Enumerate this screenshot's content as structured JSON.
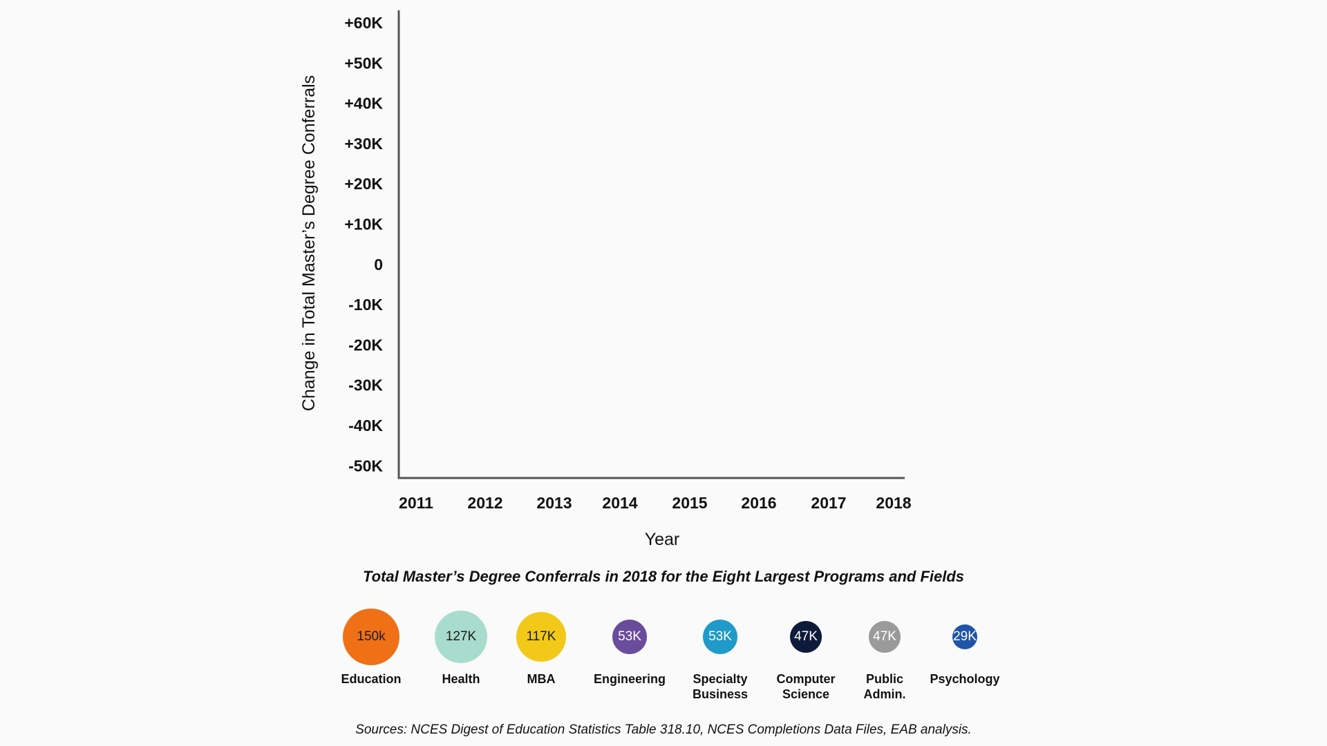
{
  "chart_data": {
    "type": "line",
    "title": "",
    "xlabel": "Year",
    "ylabel": "Change in Total Master’s Degree Conferrals",
    "x": [
      "2011",
      "2012",
      "2013",
      "2014",
      "2015",
      "2016",
      "2017",
      "2018"
    ],
    "y_ticks": [
      "+60K",
      "+50K",
      "+40K",
      "+30K",
      "+20K",
      "+10K",
      "0",
      "-10K",
      "-20K",
      "-30K",
      "-40K",
      "-50K"
    ],
    "ylim": [
      -50000,
      60000
    ],
    "grid": false,
    "series": []
  },
  "bubbles": {
    "title": "Total Master’s Degree Conferrals in 2018 for the Eight Largest Programs and Fields",
    "items": [
      {
        "label": "Education",
        "value_label": "150k",
        "value": 150000,
        "color": "#f07018",
        "text_color": "#1a1a1a"
      },
      {
        "label": "Health",
        "value_label": "127K",
        "value": 127000,
        "color": "#a8dccc",
        "text_color": "#1a1a1a"
      },
      {
        "label": "MBA",
        "value_label": "117K",
        "value": 117000,
        "color": "#f2c919",
        "text_color": "#1a1a1a"
      },
      {
        "label": "Engineering",
        "value_label": "53K",
        "value": 53000,
        "color": "#6a4c9c",
        "text_color": "#ffffff"
      },
      {
        "label": "Specialty\nBusiness",
        "value_label": "53K",
        "value": 53000,
        "color": "#1f9ac9",
        "text_color": "#ffffff"
      },
      {
        "label": "Computer\nScience",
        "value_label": "47K",
        "value": 47000,
        "color": "#0e1a3a",
        "text_color": "#ffffff"
      },
      {
        "label": "Public\nAdmin.",
        "value_label": "47K",
        "value": 47000,
        "color": "#9a9a9a",
        "text_color": "#ffffff"
      },
      {
        "label": "Psychology",
        "value_label": "29K",
        "value": 29000,
        "color": "#1f54a8",
        "text_color": "#ffffff"
      }
    ]
  },
  "sources": "Sources: NCES Digest of Education Statistics Table 318.10, NCES Completions Data Files, EAB analysis.",
  "colors": {
    "axis": "#555555",
    "background": "#fafafa"
  }
}
